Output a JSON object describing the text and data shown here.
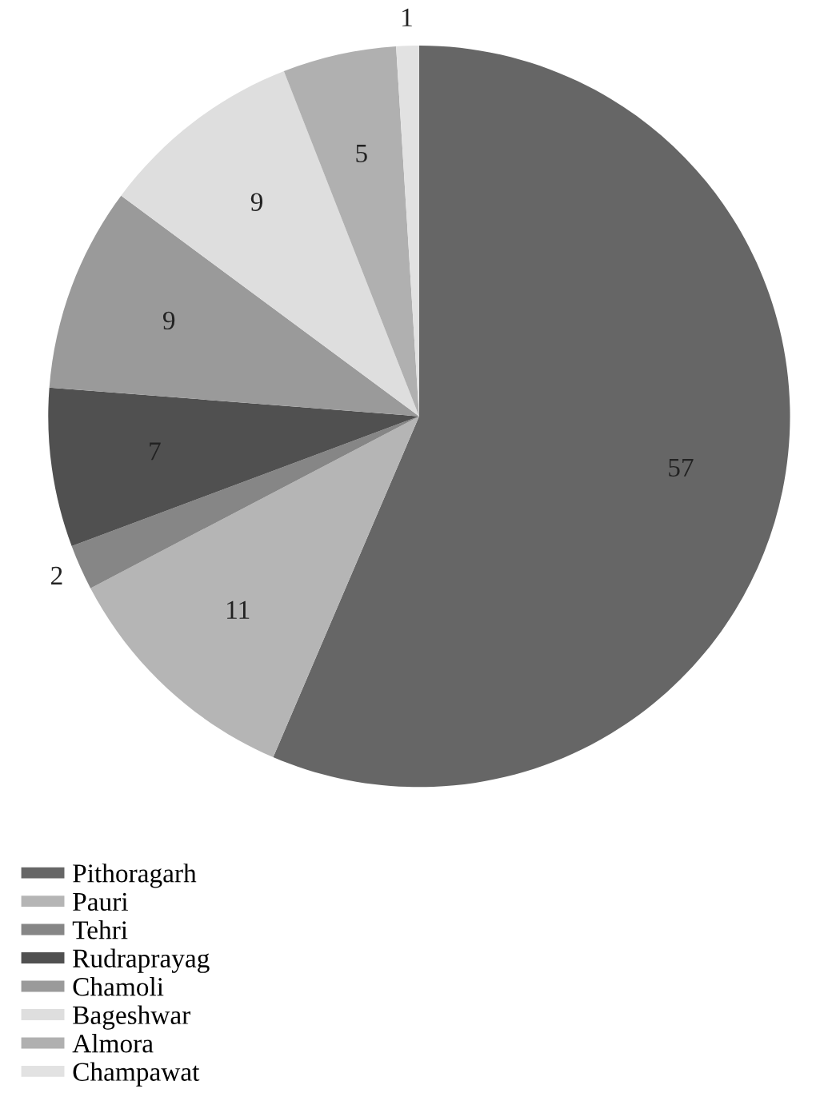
{
  "chart_data": {
    "type": "pie",
    "categories": [
      "Pithoragarh",
      "Pauri",
      "Tehri",
      "Rudraprayag",
      "Chamoli",
      "Bageshwar",
      "Almora",
      "Champawat"
    ],
    "values": [
      57,
      11,
      2,
      7,
      9,
      9,
      5,
      1
    ],
    "colors": [
      "#666666",
      "#b5b5b5",
      "#868686",
      "#505050",
      "#9a9a9a",
      "#dedede",
      "#b0b0b0",
      "#e2e2e2"
    ],
    "data_labels": true,
    "legend": "bottom left"
  }
}
